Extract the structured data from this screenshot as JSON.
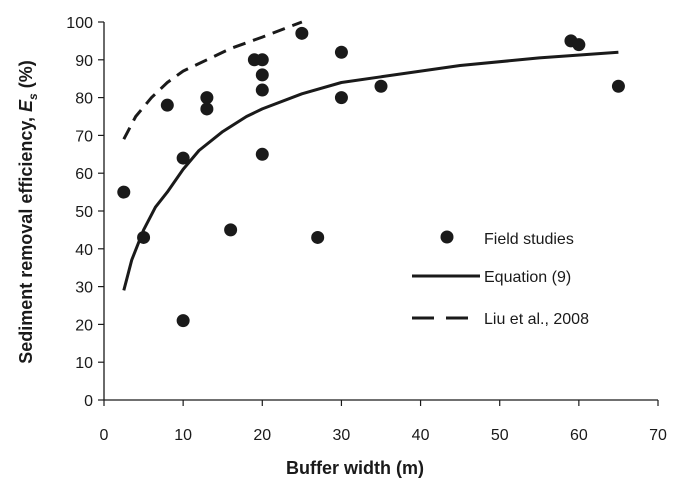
{
  "chart_data": {
    "type": "scatter",
    "xlabel": "Buffer width (m)",
    "ylabel_main": "Sediment removal efficiency, ",
    "ylabel_symbol": "E",
    "ylabel_subscript": "s",
    "ylabel_unit": " (%)",
    "xlim": [
      0,
      70
    ],
    "ylim": [
      0,
      100
    ],
    "x_ticks": [
      0,
      10,
      20,
      30,
      40,
      50,
      60,
      70
    ],
    "y_ticks": [
      0,
      10,
      20,
      30,
      40,
      50,
      60,
      70,
      80,
      90,
      100
    ],
    "grid": false,
    "legend_position": "right",
    "series": [
      {
        "name": "Field studies",
        "style": "markers",
        "color": "#1a1a1a",
        "points": [
          [
            2.5,
            55
          ],
          [
            5,
            43
          ],
          [
            8,
            78
          ],
          [
            10,
            64
          ],
          [
            10,
            21
          ],
          [
            13,
            80
          ],
          [
            13,
            77
          ],
          [
            16,
            45
          ],
          [
            19,
            90
          ],
          [
            20,
            90
          ],
          [
            20,
            86
          ],
          [
            20,
            82
          ],
          [
            20,
            65
          ],
          [
            25,
            97
          ],
          [
            27,
            43
          ],
          [
            30,
            92
          ],
          [
            30,
            80
          ],
          [
            35,
            83
          ],
          [
            59,
            95
          ],
          [
            60,
            94
          ],
          [
            65,
            83
          ]
        ]
      },
      {
        "name": "Equation (9)",
        "style": "solid",
        "color": "#1a1a1a",
        "points": [
          [
            2.5,
            29
          ],
          [
            3.5,
            37
          ],
          [
            5,
            45
          ],
          [
            6.5,
            51
          ],
          [
            8,
            55
          ],
          [
            10,
            61
          ],
          [
            12,
            66
          ],
          [
            15,
            71
          ],
          [
            18,
            75
          ],
          [
            20,
            77
          ],
          [
            25,
            81
          ],
          [
            30,
            84
          ],
          [
            35,
            85.5
          ],
          [
            45,
            88.5
          ],
          [
            55,
            90.5
          ],
          [
            65,
            92
          ]
        ]
      },
      {
        "name": "Liu et al., 2008",
        "style": "dashed",
        "color": "#1a1a1a",
        "points": [
          [
            2.5,
            69
          ],
          [
            4,
            75
          ],
          [
            6,
            80
          ],
          [
            8,
            84
          ],
          [
            10,
            87
          ],
          [
            13,
            90
          ],
          [
            16,
            93
          ],
          [
            20,
            96
          ],
          [
            25,
            100
          ]
        ]
      }
    ]
  }
}
